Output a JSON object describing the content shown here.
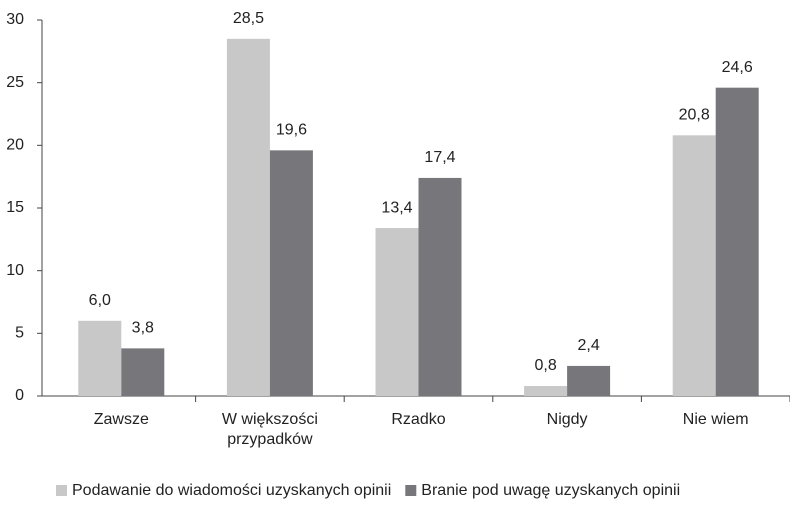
{
  "chart_data": {
    "type": "bar",
    "categories": [
      "Zawsze",
      "W większości przypadków",
      "Rzadko",
      "Nigdy",
      "Nie wiem"
    ],
    "series": [
      {
        "name": "Podawanie do wiadomości uzyskanych opinii",
        "color": "#c8c8c8",
        "values": [
          6.0,
          28.5,
          13.4,
          0.8,
          20.8
        ],
        "value_labels": [
          "6,0",
          "28,5",
          "13,4",
          "0,8",
          "20,8"
        ]
      },
      {
        "name": "Branie pod uwagę uzyskanych opinii",
        "color": "#77777b",
        "values": [
          3.8,
          19.6,
          17.4,
          2.4,
          24.6
        ],
        "value_labels": [
          "3,8",
          "19,6",
          "17,4",
          "2,4",
          "24,6"
        ]
      }
    ],
    "ylim": [
      0,
      30
    ],
    "yticks": [
      0,
      5,
      10,
      15,
      20,
      25,
      30
    ],
    "legend": "bottom"
  }
}
